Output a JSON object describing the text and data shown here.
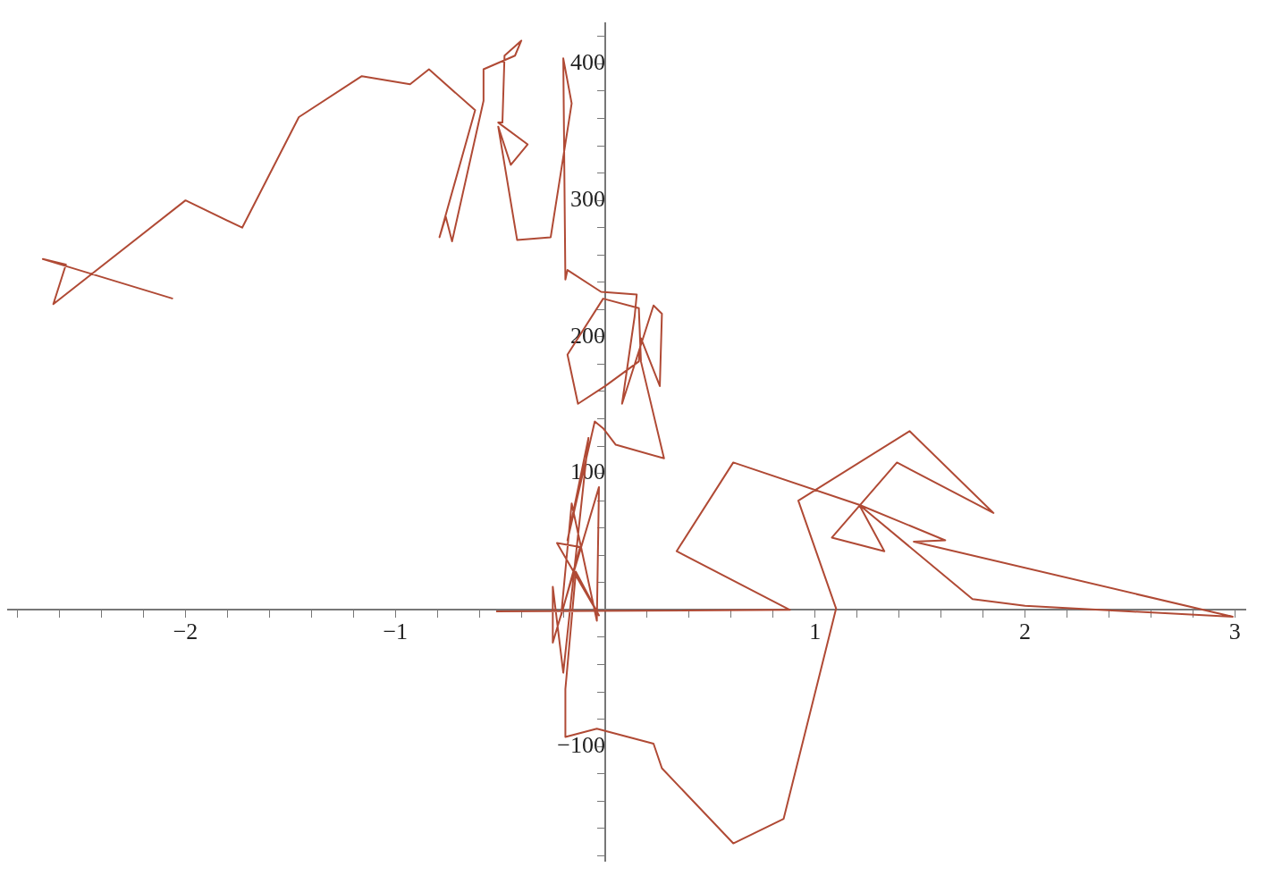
{
  "chart_data": {
    "type": "line",
    "marker": "none",
    "line_style": "solid",
    "grid": false,
    "legend": false,
    "xlim": [
      -2.85,
      3.05
    ],
    "ylim": [
      -184,
      430
    ],
    "xticks": [
      {
        "value": -2.8,
        "label": null
      },
      {
        "value": -2.6,
        "label": null
      },
      {
        "value": -2.4,
        "label": null
      },
      {
        "value": -2.2,
        "label": null
      },
      {
        "value": -2,
        "label": "−2"
      },
      {
        "value": -1.8,
        "label": null
      },
      {
        "value": -1.6,
        "label": null
      },
      {
        "value": -1.4,
        "label": null
      },
      {
        "value": -1.2,
        "label": null
      },
      {
        "value": -1,
        "label": "−1"
      },
      {
        "value": -0.8,
        "label": null
      },
      {
        "value": -0.6,
        "label": null
      },
      {
        "value": -0.4,
        "label": null
      },
      {
        "value": -0.2,
        "label": null
      },
      {
        "value": 0.2,
        "label": null
      },
      {
        "value": 0.4,
        "label": null
      },
      {
        "value": 0.6,
        "label": null
      },
      {
        "value": 0.8,
        "label": null
      },
      1,
      {
        "value": 1.2,
        "label": null
      },
      {
        "value": 1.4,
        "label": null
      },
      {
        "value": 1.6,
        "label": null
      },
      {
        "value": 1.8,
        "label": null
      },
      2,
      {
        "value": 2.2,
        "label": null
      },
      {
        "value": 2.4,
        "label": null
      },
      {
        "value": 2.6,
        "label": null
      },
      {
        "value": 2.8,
        "label": null
      },
      3
    ],
    "yticks": [
      {
        "value": -180,
        "label": null
      },
      {
        "value": -160,
        "label": null
      },
      {
        "value": -140,
        "label": null
      },
      {
        "value": -120,
        "label": null
      },
      {
        "value": -100,
        "label": "−100"
      },
      {
        "value": -80,
        "label": null
      },
      {
        "value": -60,
        "label": null
      },
      {
        "value": -40,
        "label": null
      },
      {
        "value": -20,
        "label": null
      },
      {
        "value": 20,
        "label": null
      },
      {
        "value": 40,
        "label": null
      },
      {
        "value": 60,
        "label": null
      },
      {
        "value": 80,
        "label": null
      },
      100,
      {
        "value": 120,
        "label": null
      },
      {
        "value": 140,
        "label": null
      },
      {
        "value": 160,
        "label": null
      },
      {
        "value": 180,
        "label": null
      },
      200,
      {
        "value": 220,
        "label": null
      },
      {
        "value": 240,
        "label": null
      },
      {
        "value": 260,
        "label": null
      },
      {
        "value": 280,
        "label": null
      },
      300,
      {
        "value": 320,
        "label": null
      },
      {
        "value": 340,
        "label": null
      },
      {
        "value": 360,
        "label": null
      },
      {
        "value": 380,
        "label": null
      },
      400,
      {
        "value": 420,
        "label": null
      }
    ],
    "series": [
      {
        "color": "#b04a35",
        "x": [
          -2.06,
          -2.68,
          -2.57,
          -2.63,
          -2.0,
          -1.73,
          -1.46,
          -1.16,
          -0.93,
          -0.84,
          -0.62,
          -0.79,
          -0.76,
          -0.73,
          -0.58,
          -0.58,
          -0.43,
          -0.4,
          -0.48,
          -0.49,
          -0.51,
          -0.37,
          -0.45,
          -0.51,
          -0.42,
          -0.26,
          -0.16,
          -0.2,
          -0.19,
          -0.18,
          -0.02,
          0.15,
          0.14,
          0.08,
          0.23,
          0.27,
          0.26,
          0.17,
          0.16,
          0.0,
          -0.13,
          -0.18,
          -0.01,
          0.16,
          0.17,
          0.28,
          0.05,
          -0.01,
          -0.05,
          -0.18,
          -0.08,
          -0.2,
          -0.25,
          -0.25,
          -0.03,
          -0.04,
          -0.16,
          -0.21,
          -0.12,
          -0.23,
          -0.03,
          -0.14,
          -0.19,
          -0.19,
          -0.04,
          0.23,
          0.27,
          0.61,
          0.85,
          1.1,
          0.92,
          1.45,
          1.85,
          1.39,
          1.08,
          1.33,
          1.21,
          1.62,
          1.47,
          2.99,
          2.0,
          1.75,
          1.21,
          0.61,
          0.34,
          0.88,
          -0.52
        ],
        "values": [
          228,
          257,
          253,
          224,
          300,
          280,
          361,
          391,
          385,
          396,
          366,
          273,
          288,
          270,
          373,
          396,
          406,
          417,
          406,
          357,
          357,
          341,
          326,
          354,
          271,
          273,
          371,
          404,
          242,
          249,
          233,
          231,
          215,
          151,
          223,
          217,
          164,
          199,
          182,
          164,
          151,
          187,
          228,
          221,
          182,
          111,
          121,
          133,
          138,
          51,
          126,
          -46,
          17,
          -24,
          90,
          -8,
          78,
          -4,
          46,
          49,
          -4,
          28,
          -58,
          -93,
          -87,
          -98,
          -116,
          -171,
          -153,
          1,
          80,
          131,
          71,
          108,
          53,
          43,
          77,
          51,
          50,
          -5,
          3,
          8,
          77,
          108,
          43,
          0,
          -1
        ]
      }
    ]
  }
}
